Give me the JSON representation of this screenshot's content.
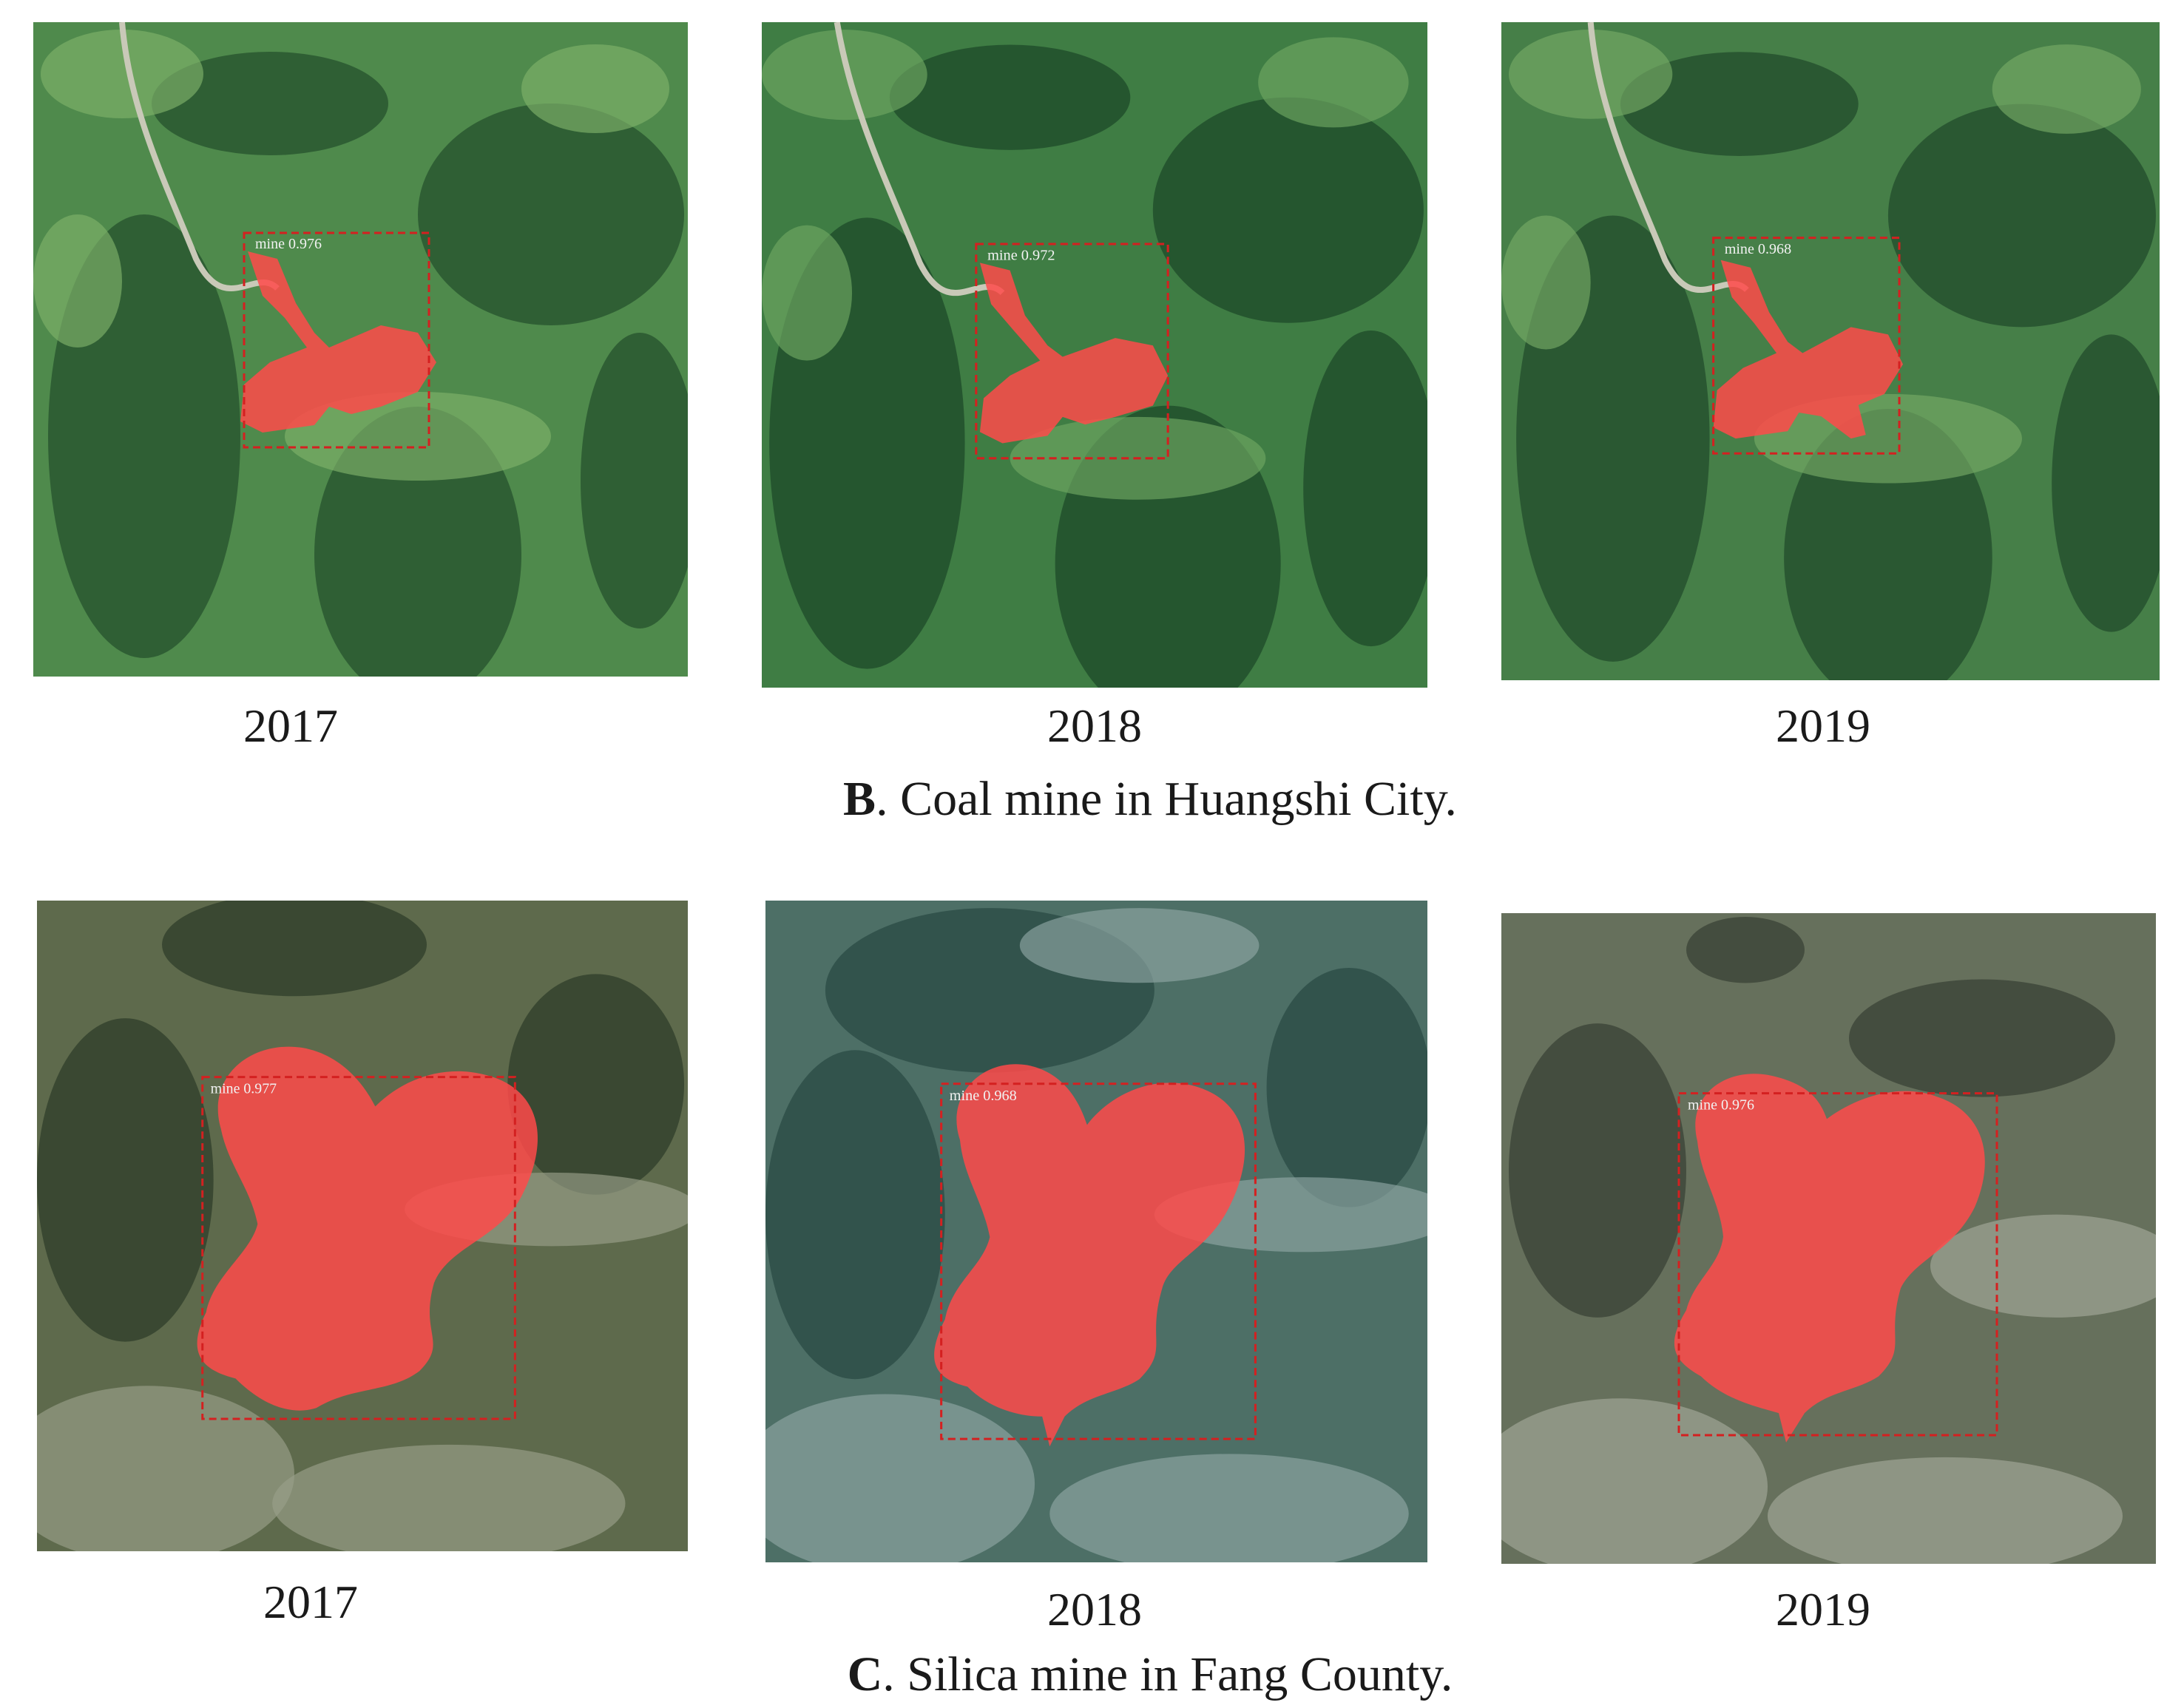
{
  "rows": [
    {
      "id": "B",
      "caption_letter": "B",
      "caption_text": ". Coal mine in Huangshi City.",
      "panels": [
        {
          "year": "2017",
          "detection_label": "mine 0.976",
          "colors": {
            "base": "#4f8a4c",
            "dark": "#24502c",
            "light": "#7fb26a"
          }
        },
        {
          "year": "2018",
          "detection_label": "mine 0.972",
          "colors": {
            "base": "#3f7d44",
            "dark": "#1e4a28",
            "light": "#6fa862"
          }
        },
        {
          "year": "2019",
          "detection_label": "mine 0.968",
          "colors": {
            "base": "#467f48",
            "dark": "#214b2b",
            "light": "#76aa66"
          }
        }
      ]
    },
    {
      "id": "C",
      "caption_letter": "C",
      "caption_text": ". Silica mine in Fang County.",
      "panels": [
        {
          "year": "2017",
          "detection_label": "mine 0.977",
          "colors": {
            "base": "#5e6a4c",
            "dark": "#2f3d2a",
            "light": "#9aa08a"
          }
        },
        {
          "year": "2018",
          "detection_label": "mine 0.968",
          "colors": {
            "base": "#4d6f66",
            "dark": "#2a4a44",
            "light": "#8fa6a4"
          }
        },
        {
          "year": "2019",
          "detection_label": "mine 0.976",
          "colors": {
            "base": "#66705c",
            "dark": "#3a4236",
            "light": "#a5a99a"
          }
        }
      ]
    }
  ],
  "colors": {
    "mine_fill": "#ff4a4a",
    "box_stroke": "#d42020"
  }
}
